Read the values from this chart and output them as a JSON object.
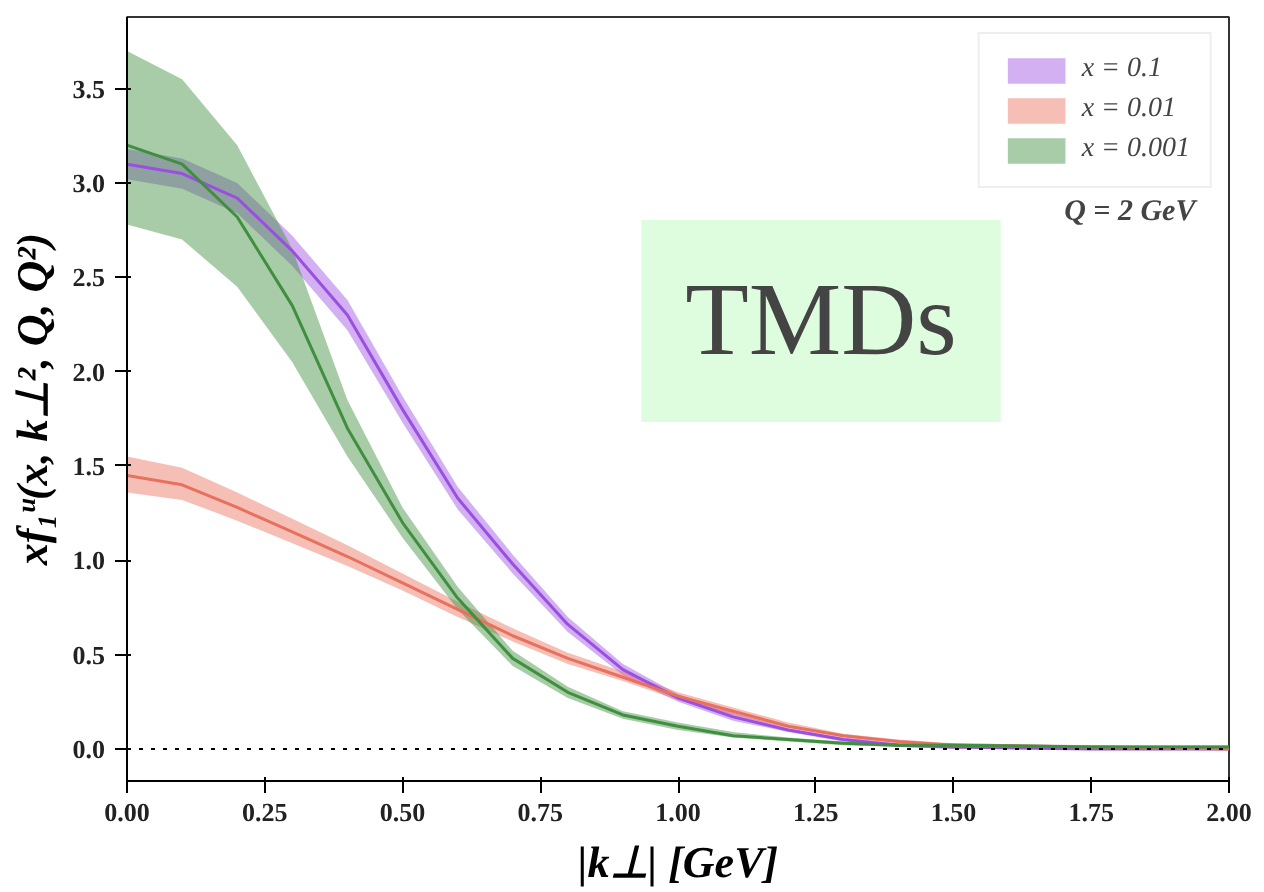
{
  "chart_data": {
    "type": "line",
    "xlabel": "|k⊥| [GeV]",
    "ylabel": "xf₁ᵘ(x, k⊥², Q, Q²)",
    "x": [
      0,
      0.1,
      0.2,
      0.3,
      0.4,
      0.5,
      0.6,
      0.7,
      0.8,
      0.9,
      1.0,
      1.1,
      1.2,
      1.3,
      1.4,
      1.5,
      1.75,
      2.0
    ],
    "series": [
      {
        "name": "x = 0.1",
        "color": "#9b4fe0",
        "values": [
          3.1,
          3.05,
          2.92,
          2.64,
          2.3,
          1.8,
          1.33,
          0.98,
          0.66,
          0.42,
          0.27,
          0.17,
          0.1,
          0.05,
          0.02,
          0.01,
          0.0,
          0.0
        ],
        "lower": [
          3.02,
          2.97,
          2.84,
          2.56,
          2.22,
          1.73,
          1.27,
          0.93,
          0.62,
          0.39,
          0.25,
          0.15,
          0.09,
          0.04,
          0.01,
          0.0,
          0.0,
          0.0
        ],
        "upper": [
          3.18,
          3.13,
          3.0,
          2.72,
          2.38,
          1.87,
          1.39,
          1.03,
          0.7,
          0.45,
          0.29,
          0.19,
          0.11,
          0.06,
          0.03,
          0.02,
          0.01,
          0.01
        ]
      },
      {
        "name": "x = 0.01",
        "color": "#e8705e",
        "values": [
          1.45,
          1.4,
          1.28,
          1.15,
          1.02,
          0.88,
          0.74,
          0.6,
          0.48,
          0.38,
          0.28,
          0.2,
          0.12,
          0.07,
          0.04,
          0.02,
          0.01,
          0.0
        ],
        "lower": [
          1.36,
          1.32,
          1.21,
          1.09,
          0.97,
          0.84,
          0.7,
          0.57,
          0.45,
          0.36,
          0.26,
          0.18,
          0.11,
          0.06,
          0.03,
          0.01,
          0.0,
          0.0
        ],
        "upper": [
          1.55,
          1.49,
          1.36,
          1.22,
          1.08,
          0.93,
          0.78,
          0.64,
          0.51,
          0.41,
          0.3,
          0.22,
          0.14,
          0.08,
          0.05,
          0.03,
          0.02,
          0.01
        ]
      },
      {
        "name": "x = 0.001",
        "color": "#3f8f3f",
        "values": [
          3.2,
          3.1,
          2.82,
          2.35,
          1.7,
          1.2,
          0.8,
          0.48,
          0.3,
          0.18,
          0.12,
          0.07,
          0.05,
          0.03,
          0.02,
          0.02,
          0.01,
          0.01
        ],
        "lower": [
          2.78,
          2.7,
          2.45,
          2.05,
          1.55,
          1.12,
          0.74,
          0.44,
          0.27,
          0.16,
          0.1,
          0.06,
          0.04,
          0.02,
          0.01,
          0.01,
          0.0,
          0.0
        ],
        "upper": [
          3.7,
          3.55,
          3.2,
          2.65,
          1.85,
          1.28,
          0.86,
          0.52,
          0.33,
          0.2,
          0.14,
          0.09,
          0.06,
          0.04,
          0.03,
          0.03,
          0.02,
          0.02
        ]
      }
    ],
    "xlim": [
      0,
      2.0
    ],
    "ylim": [
      -0.17,
      3.88
    ],
    "xticks": [
      {
        "value": 0,
        "label": "0.00"
      },
      0.25,
      {
        "value": 0.5,
        "label": "0.50"
      },
      0.75,
      {
        "value": 1.0,
        "label": "1.00"
      },
      1.25,
      {
        "value": 1.5,
        "label": "1.50"
      },
      1.75,
      {
        "value": 2.0,
        "label": "2.00"
      }
    ],
    "yticks": [
      {
        "value": 0,
        "label": "0.0"
      },
      0.5,
      {
        "value": 1.0,
        "label": "1.0"
      },
      1.5,
      {
        "value": 2.0,
        "label": "2.0"
      },
      2.5,
      {
        "value": 3.0,
        "label": "3.0"
      },
      3.5
    ],
    "ref_lines": [
      {
        "axis": "y",
        "value": 0,
        "color": "#000000",
        "line_style": "dotted"
      }
    ],
    "annotations": [
      "Q = 2 GeV",
      "TMDs"
    ],
    "grid": false,
    "legend": "top right",
    "marker": "none",
    "line_style": "solid"
  }
}
